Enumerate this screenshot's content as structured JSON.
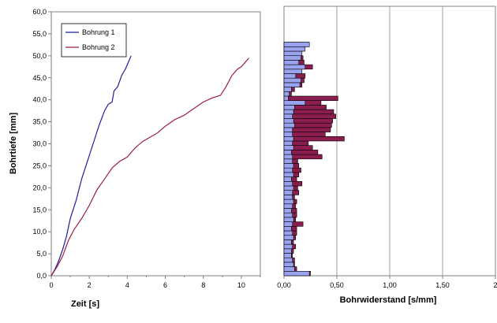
{
  "chart_data": [
    {
      "type": "line",
      "xlabel": "Zeit [s]",
      "ylabel": "Bohrtiefe [mm]",
      "xlim": [
        0,
        11
      ],
      "ylim": [
        0,
        60
      ],
      "x_ticks": [
        "0",
        "2",
        "4",
        "6",
        "8",
        "10"
      ],
      "y_ticks": [
        "0,0",
        "5,0",
        "10,0",
        "15,0",
        "20,0",
        "25,0",
        "30,0",
        "35,0",
        "40,0",
        "45,0",
        "50,0",
        "55,0",
        "60,0"
      ],
      "grid": false,
      "legend_position": "top-left",
      "series": [
        {
          "name": "Bohrung 1",
          "color": "#1f1f9e",
          "x": [
            0,
            0.2,
            0.4,
            0.6,
            0.8,
            1.0,
            1.3,
            1.6,
            1.9,
            2.2,
            2.5,
            2.8,
            3.0,
            3.2,
            3.3,
            3.5,
            3.7,
            3.9,
            4.1,
            4.2
          ],
          "y": [
            0,
            1.5,
            3.5,
            6,
            9,
            13,
            17,
            22,
            26,
            30,
            34,
            37.5,
            39,
            39.5,
            42,
            43,
            45.5,
            47,
            49,
            50
          ]
        },
        {
          "name": "Bohrung 2",
          "color": "#9e1f4a",
          "x": [
            0,
            0.3,
            0.6,
            0.9,
            1.2,
            1.6,
            2.0,
            2.4,
            2.8,
            3.2,
            3.6,
            4.0,
            4.4,
            4.8,
            5.2,
            5.6,
            6.0,
            6.5,
            7.0,
            7.5,
            8.0,
            8.5,
            8.9,
            9.2,
            9.5,
            9.8,
            10.0,
            10.2,
            10.4
          ],
          "y": [
            0,
            2,
            4.5,
            8,
            10.5,
            13,
            16,
            19.5,
            22,
            24.5,
            26,
            27,
            29,
            30.5,
            31.5,
            32.5,
            34,
            35.5,
            36.5,
            38,
            39.5,
            40.5,
            41,
            43,
            45.5,
            47,
            47.5,
            48.5,
            49.5
          ]
        }
      ]
    },
    {
      "type": "bar",
      "orientation": "horizontal",
      "xlabel": "Bohrwiderstand [s/mm]",
      "ylabel": "",
      "xlim": [
        0,
        2
      ],
      "ylim": [
        0,
        60
      ],
      "x_ticks": [
        "0,00",
        "0,50",
        "1,00",
        "1,50",
        "2"
      ],
      "grid": "vertical",
      "bin_width": 1,
      "depth_bins": [
        0.5,
        1.5,
        2.5,
        3.5,
        4.5,
        5.5,
        6.5,
        7.5,
        8.5,
        9.5,
        10.5,
        11.5,
        12.5,
        13.5,
        14.5,
        15.5,
        16.5,
        17.5,
        18.5,
        19.5,
        20.5,
        21.5,
        22.5,
        23.5,
        24.5,
        25.5,
        26.5,
        27.5,
        28.5,
        29.5,
        30.5,
        31.5,
        32.5,
        33.5,
        34.5,
        35.5,
        36.5,
        37.5,
        38.5,
        39.5,
        40.5,
        41.5,
        42.5,
        43.5,
        44.5,
        45.5,
        46.5,
        47.5,
        48.5,
        49.5,
        50.5,
        51.5
      ],
      "series": [
        {
          "name": "Bohrung 2",
          "color": "#8b1e4f",
          "values": [
            0.25,
            0.12,
            0.1,
            0.1,
            0.08,
            0.09,
            0.11,
            0.09,
            0.11,
            0.12,
            0.12,
            0.18,
            0.11,
            0.12,
            0.12,
            0.11,
            0.12,
            0.1,
            0.14,
            0.13,
            0.17,
            0.12,
            0.14,
            0.16,
            0.14,
            0.13,
            0.36,
            0.32,
            0.27,
            0.23,
            0.57,
            0.39,
            0.44,
            0.45,
            0.46,
            0.49,
            0.47,
            0.4,
            0.35,
            0.51,
            0.07,
            0.1,
            0.17,
            0.19,
            0.2,
            0.13,
            0.27,
            0.19,
            0.18,
            0.14,
            0.19,
            0.24
          ]
        },
        {
          "name": "Bohrung 1",
          "color": "#9aa4ee",
          "values": [
            0.24,
            0.1,
            0.09,
            0.08,
            0.07,
            0.07,
            0.08,
            0.07,
            0.09,
            0.08,
            0.07,
            0.08,
            0.09,
            0.08,
            0.07,
            0.08,
            0.09,
            0.08,
            0.08,
            0.09,
            0.08,
            0.07,
            0.09,
            0.08,
            0.09,
            0.08,
            0.08,
            0.07,
            0.09,
            0.08,
            0.09,
            0.08,
            0.08,
            0.1,
            0.09,
            0.08,
            0.09,
            0.1,
            0.2,
            0.04,
            0.05,
            0.07,
            0.15,
            0.16,
            0.11,
            0.17,
            0.2,
            0.14,
            0.16,
            0.17,
            0.2,
            0.24
          ]
        }
      ]
    }
  ]
}
